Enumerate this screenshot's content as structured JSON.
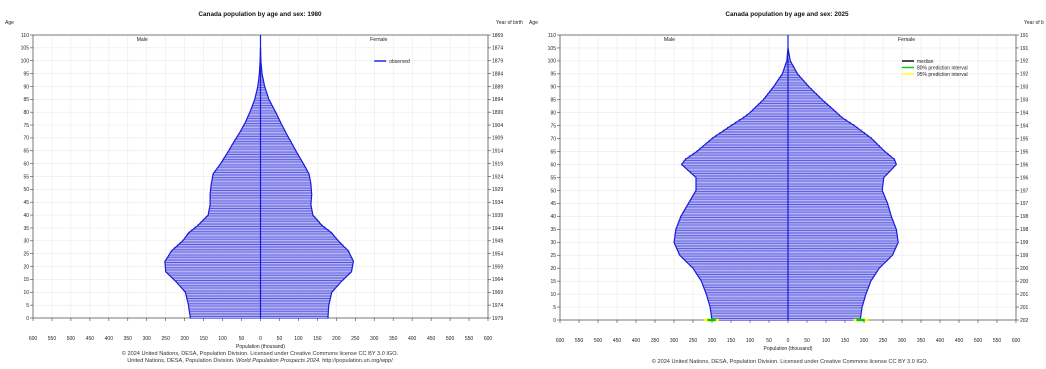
{
  "footer": {
    "left_line1": "© 2024 United Nations, DESA, Population Division. Licensed under Creative Commons license CC BY 3.0 IGO.",
    "left_line2_pre": "United Nations, DESA, Population Division.",
    "left_line2_italic": "World Population Prospects 2024.",
    "left_line2_post": "http://population.un.org/wpp/",
    "right_line1": "© 2024 United Nations, DESA, Population Division. Licensed under Creative Commons license CC BY 3.0 IGO."
  },
  "colors": {
    "bar_fill": "#b3b3f2",
    "bar_edge": "#1a1ad9",
    "centerline": "#1a1ad9",
    "pi80": "#00cc00",
    "pi95": "#ffff00",
    "median": "#000000",
    "grid": "#e6e6e6"
  },
  "chart_data": [
    {
      "type": "bar",
      "orientation": "horizontal-pyramid",
      "title": "Canada population by age and sex: 1980",
      "left_axis_title": "Age",
      "right_axis_title": "Year of birth",
      "xlabel": "Population (thousand)",
      "side_labels": {
        "male": "Male",
        "female": "Female"
      },
      "xlim": [
        -600,
        600
      ],
      "x_ticks": [
        600,
        550,
        500,
        450,
        400,
        350,
        300,
        250,
        200,
        150,
        100,
        50,
        0,
        50,
        100,
        150,
        200,
        250,
        300,
        350,
        400,
        450,
        500,
        550,
        600
      ],
      "ylim": [
        0,
        110
      ],
      "y_ticks": [
        110,
        105,
        100,
        95,
        90,
        85,
        80,
        75,
        70,
        65,
        60,
        55,
        50,
        45,
        40,
        35,
        30,
        25,
        20,
        15,
        10,
        5,
        0
      ],
      "birth_year_ticks": [
        "1869",
        "1874",
        "1879",
        "1884",
        "1889",
        "1894",
        "1899",
        "1904",
        "1909",
        "1914",
        "1919",
        "1924",
        "1929",
        "1934",
        "1939",
        "1944",
        "1949",
        "1954",
        "1959",
        "1964",
        "1969",
        "1974",
        "1979"
      ],
      "legend": {
        "position": "top-right",
        "entries": [
          "observed"
        ]
      },
      "grid": true,
      "age_anchors": [
        0,
        5,
        10,
        14,
        18,
        22,
        26,
        30,
        33,
        36,
        40,
        44,
        48,
        52,
        56,
        60,
        64,
        68,
        72,
        76,
        80,
        85,
        90,
        95,
        100
      ],
      "male_anchors": [
        185,
        190,
        198,
        222,
        250,
        252,
        235,
        205,
        190,
        165,
        138,
        133,
        133,
        130,
        125,
        105,
        88,
        72,
        55,
        40,
        28,
        15,
        7,
        3,
        1
      ],
      "female_anchors": [
        178,
        180,
        188,
        212,
        240,
        245,
        232,
        205,
        188,
        162,
        138,
        133,
        135,
        133,
        128,
        113,
        97,
        82,
        67,
        53,
        40,
        22,
        11,
        4,
        1
      ]
    },
    {
      "type": "bar",
      "orientation": "horizontal-pyramid",
      "title": "Canada population by age and sex: 2025",
      "left_axis_title": "Age",
      "right_axis_title": "Year of b",
      "xlabel": "Population (thousand)",
      "side_labels": {
        "male": "Male",
        "female": "Female"
      },
      "xlim": [
        -600,
        600
      ],
      "x_ticks": [
        600,
        550,
        500,
        450,
        400,
        350,
        300,
        250,
        200,
        150,
        100,
        50,
        0,
        50,
        100,
        150,
        200,
        250,
        300,
        350,
        400,
        450,
        500,
        550,
        600
      ],
      "ylim": [
        0,
        110
      ],
      "y_ticks": [
        110,
        105,
        100,
        95,
        90,
        85,
        80,
        75,
        70,
        65,
        60,
        55,
        50,
        45,
        40,
        35,
        30,
        25,
        20,
        15,
        10,
        5,
        0
      ],
      "birth_year_ticks": [
        "191",
        "191",
        "192",
        "192",
        "193",
        "193",
        "194",
        "194",
        "195",
        "195",
        "196",
        "196",
        "197",
        "197",
        "198",
        "198",
        "199",
        "199",
        "200",
        "200",
        "201",
        "201",
        "202"
      ],
      "legend": {
        "position": "top-right",
        "entries": [
          "median",
          "80% prediction interval",
          "95% prediction interval"
        ]
      },
      "grid": true,
      "age_anchors": [
        0,
        5,
        10,
        15,
        20,
        25,
        30,
        35,
        40,
        45,
        50,
        55,
        60,
        62,
        65,
        70,
        75,
        78,
        80,
        85,
        90,
        95,
        100
      ],
      "male_anchors": [
        200,
        205,
        215,
        228,
        250,
        285,
        300,
        295,
        282,
        262,
        242,
        242,
        280,
        270,
        240,
        200,
        150,
        118,
        100,
        65,
        38,
        15,
        3
      ],
      "female_anchors": [
        190,
        195,
        205,
        218,
        240,
        275,
        290,
        285,
        272,
        262,
        248,
        252,
        285,
        280,
        255,
        220,
        175,
        143,
        128,
        90,
        55,
        25,
        6
      ]
    }
  ]
}
